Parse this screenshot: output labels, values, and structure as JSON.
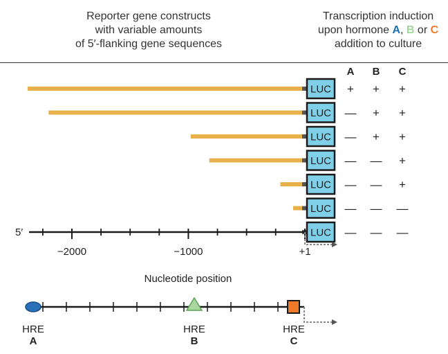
{
  "header_left": {
    "line1": "Reporter gene constructs",
    "line2": "with variable amounts",
    "line3": "of 5′-flanking gene sequences"
  },
  "header_right": {
    "line1": "Transcription induction",
    "line2_prefix": "upon hormone ",
    "hormone_a": "A",
    "sep1": ", ",
    "hormone_b": "B",
    "sep2": " or ",
    "hormone_c": "C",
    "line3": "addition to culture"
  },
  "column_headers": [
    "A",
    "B",
    "C"
  ],
  "colors": {
    "hormone_a": "#1f6fb4",
    "hormone_b": "#9fd69a",
    "hormone_c": "#f07a2a",
    "luc_fill": "#7fcfe8",
    "bar": "#e8b04a",
    "hre_b": "#a8d8a0"
  },
  "luc_label": "LUC",
  "constructs": [
    {
      "start": -2380,
      "induction": [
        "+",
        "+",
        "+"
      ]
    },
    {
      "start": -2200,
      "induction": [
        "—",
        "+",
        "+"
      ]
    },
    {
      "start": -980,
      "induction": [
        "—",
        "+",
        "+"
      ]
    },
    {
      "start": -820,
      "induction": [
        "—",
        "—",
        "+"
      ]
    },
    {
      "start": -210,
      "induction": [
        "—",
        "—",
        "+"
      ]
    },
    {
      "start": -100,
      "induction": [
        "—",
        "—",
        "—"
      ]
    },
    {
      "start": null,
      "induction": [
        "—",
        "—",
        "—"
      ]
    }
  ],
  "axis": {
    "end_label": "5′",
    "ticks": [
      "−2000",
      "−1000",
      "+1"
    ],
    "tick_values": [
      -2000,
      -1000,
      1
    ],
    "title": "Nucleotide position"
  },
  "hre": [
    {
      "label": "HRE",
      "hormone": "A",
      "position": -2350
    },
    {
      "label": "HRE",
      "hormone": "B",
      "position": -1000
    },
    {
      "label": "HRE",
      "hormone": "C",
      "position": -70
    }
  ]
}
